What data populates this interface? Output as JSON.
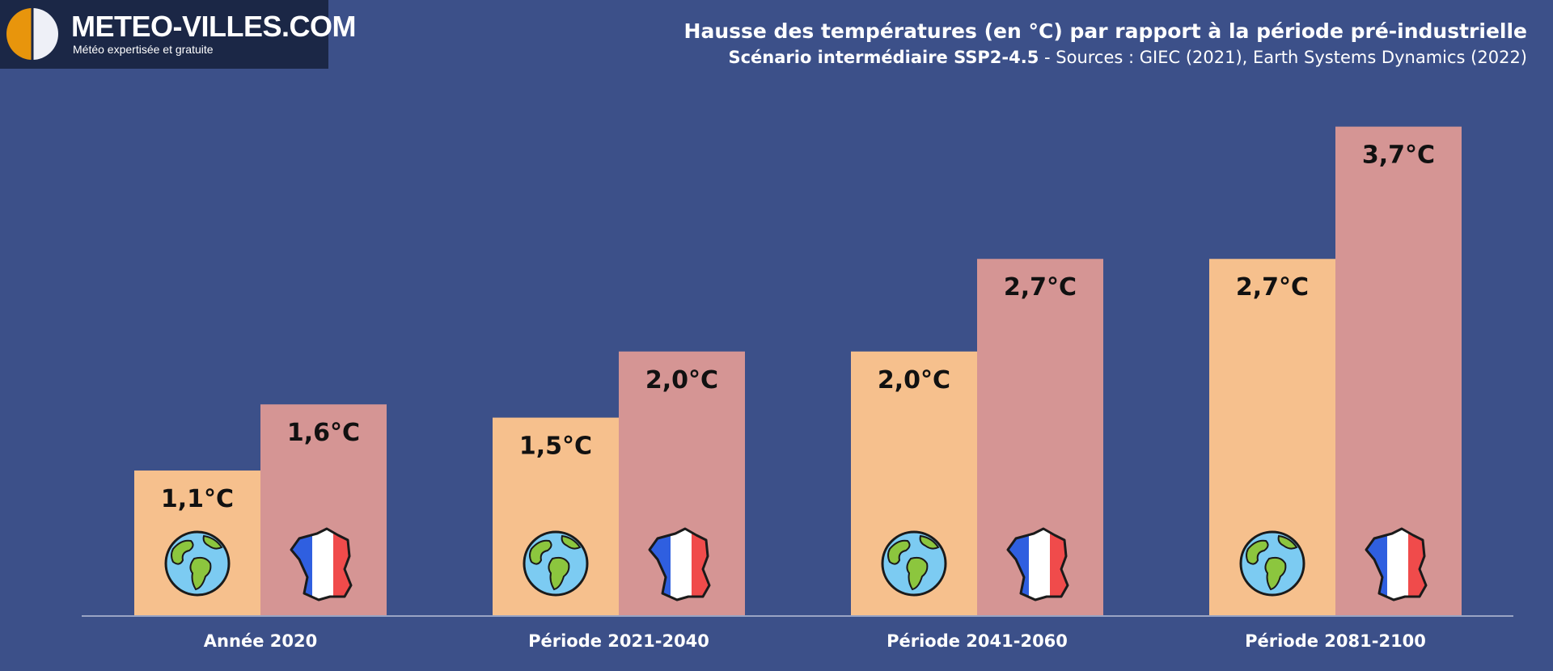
{
  "logo": {
    "name": "METEO-VILLES.COM",
    "tagline": "Météo expertisée et gratuite"
  },
  "header": {
    "title": "Hausse des températures (en °C) par rapport à la période pré-industrielle",
    "subtitle_bold": "Scénario intermédiaire SSP2-4.5",
    "subtitle_rest": " - Sources : GIEC (2021), Earth Systems Dynamics (2022)"
  },
  "colors": {
    "background": "#3c5089",
    "world": "#f6c08d",
    "france": "#d59594",
    "axis": "#9aa4c4"
  },
  "chart_data": {
    "type": "bar",
    "categories": [
      "Année 2020",
      "Période 2021-2040",
      "Période 2041-2060",
      "Période 2081-2100"
    ],
    "series": [
      {
        "icon": "globe-icon",
        "color": "#f6c08d",
        "values": [
          1.1,
          1.5,
          2.0,
          2.7
        ],
        "labels": [
          "1,1°C",
          "1,5°C",
          "2,0°C",
          "2,7°C"
        ]
      },
      {
        "icon": "france-flag-map-icon",
        "color": "#d59594",
        "values": [
          1.6,
          2.0,
          2.7,
          3.7
        ],
        "labels": [
          "1,6°C",
          "2,0°C",
          "2,7°C",
          "3,7°C"
        ]
      }
    ],
    "ylim": [
      0,
      4.15
    ],
    "grid": false,
    "legend": "none"
  }
}
